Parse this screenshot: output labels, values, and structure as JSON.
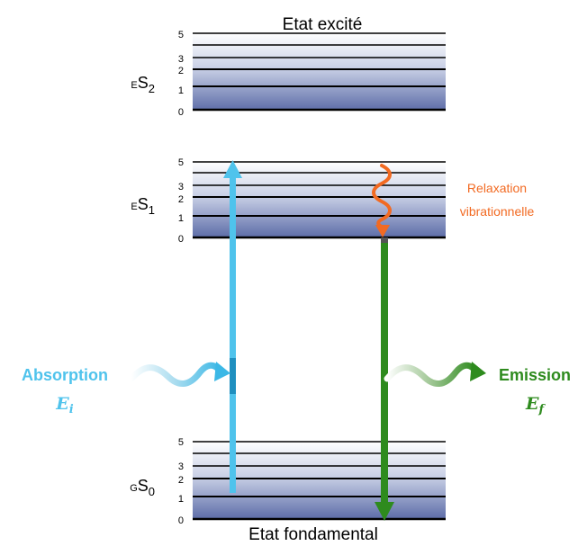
{
  "titles": {
    "excited": "Etat excité",
    "ground": "Etat fondamental"
  },
  "states": {
    "s2": {
      "prefix": "E",
      "letter": "S",
      "sub": "2",
      "ticks": [
        "5",
        "3",
        "2",
        "1",
        "0"
      ]
    },
    "s1": {
      "prefix": "E",
      "letter": "S",
      "sub": "1",
      "ticks": [
        "5",
        "3",
        "2",
        "1",
        "0"
      ]
    },
    "s0": {
      "prefix": "G",
      "letter": "S",
      "sub": "0",
      "ticks": [
        "5",
        "3",
        "2",
        "1",
        "0"
      ]
    }
  },
  "absorption": {
    "label": "Absorption",
    "energy_symbol": "E",
    "energy_sub": "i"
  },
  "emission": {
    "label": "Emission",
    "energy_symbol": "E",
    "energy_sub": "f"
  },
  "relaxation": {
    "line1": "Relaxation",
    "line2": "vibrationnelle"
  },
  "colors": {
    "absorption": "#4fc3ec",
    "emission": "#2e8b1e",
    "relaxation": "#f26a22",
    "band_dark": "#5b6ca8",
    "band_light": "#ffffff"
  }
}
